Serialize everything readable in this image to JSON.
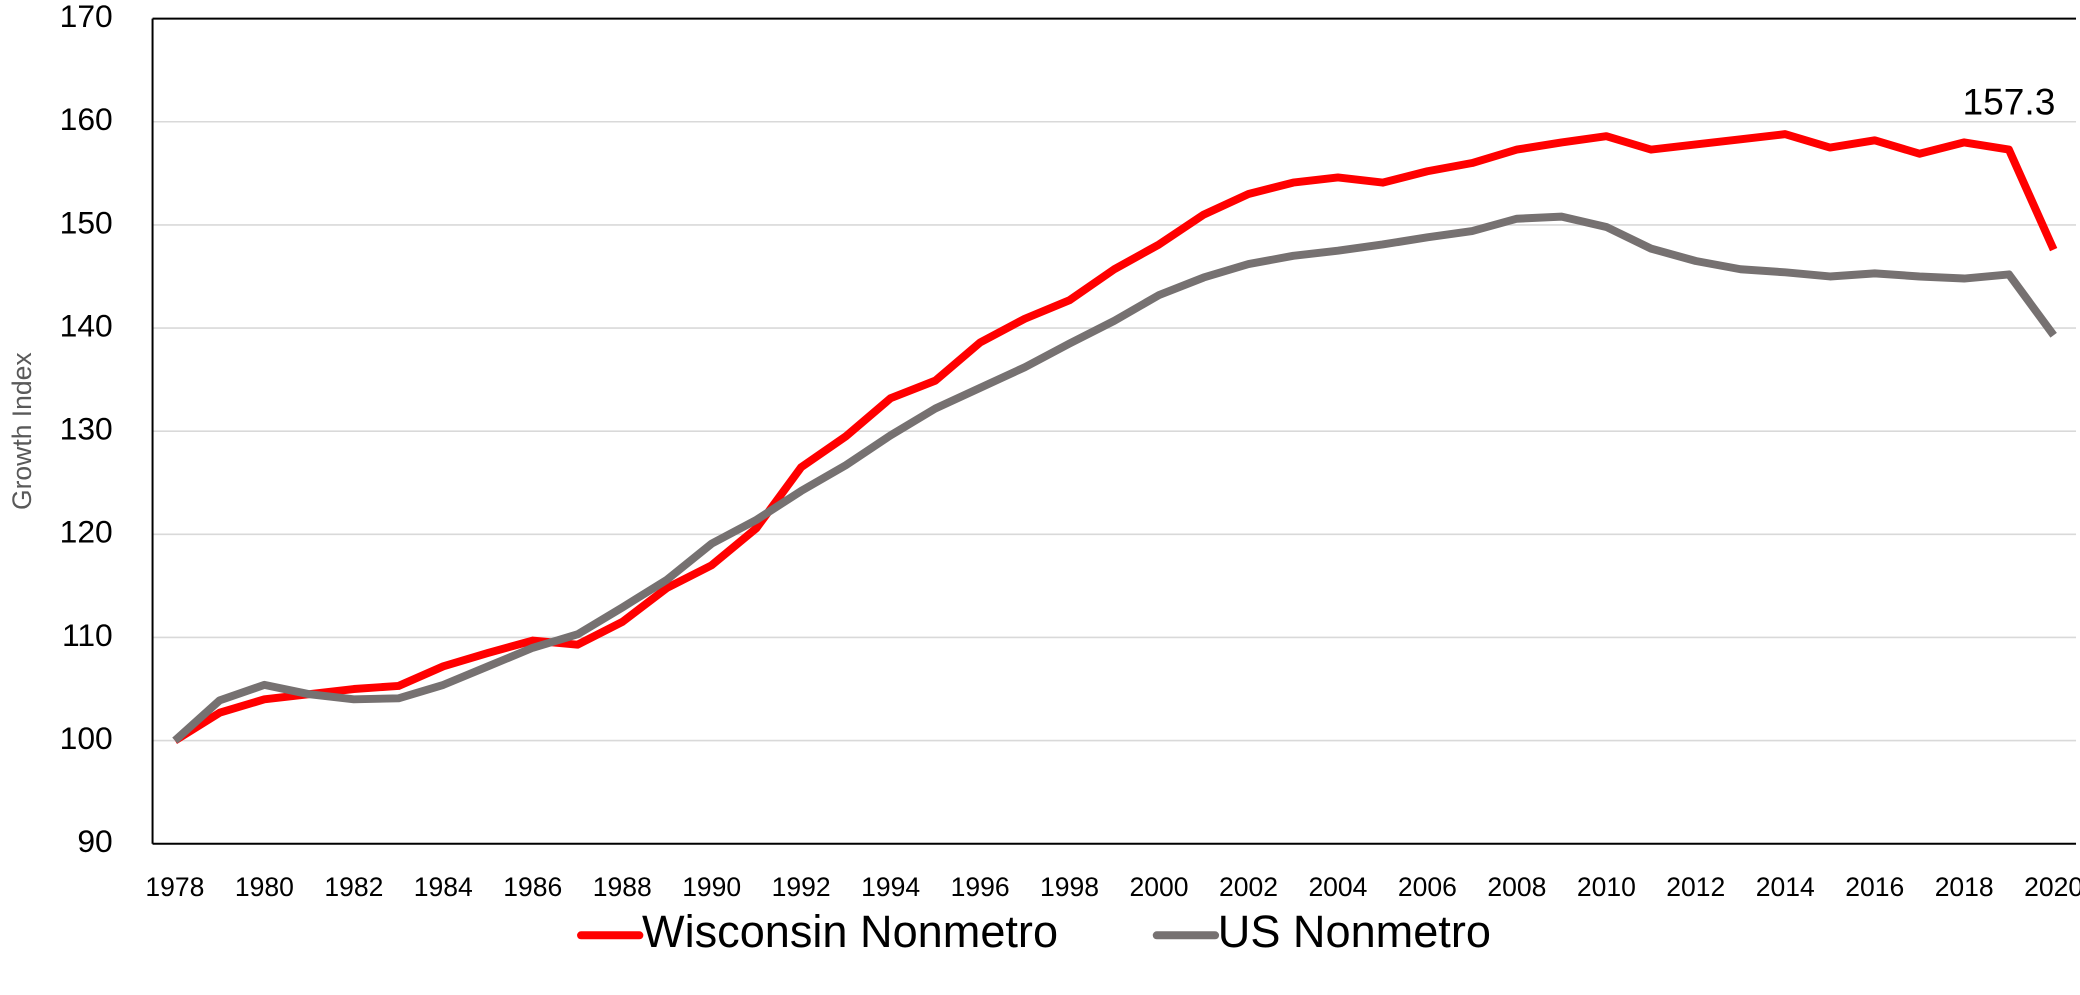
{
  "chart_data": {
    "type": "line",
    "y_label": "Growth Index",
    "annotation": "157.3",
    "categories": [
      "1978",
      null,
      "1980",
      null,
      "1982",
      null,
      "1984",
      null,
      "1986",
      null,
      "1988",
      null,
      "1990",
      null,
      "1992",
      null,
      "1994",
      null,
      "1996",
      null,
      "1998",
      null,
      "2000",
      null,
      "2002",
      null,
      "2004",
      null,
      "2006",
      null,
      "2008",
      null,
      "2010",
      null,
      "2012",
      null,
      "2014",
      null,
      "2016",
      null,
      "2018",
      null,
      "2020"
    ],
    "series": [
      {
        "name": "Wisconsin Nonmetro",
        "color": "#ff0000",
        "values": [
          100,
          102.7,
          104.0,
          104.5,
          105.0,
          105.3,
          107.2,
          108.5,
          109.7,
          109.3,
          111.5,
          114.8,
          117.0,
          120.6,
          126.5,
          129.5,
          133.2,
          134.9,
          138.6,
          140.9,
          142.7,
          145.7,
          148.1,
          151.0,
          153.0,
          154.1,
          154.6,
          154.1,
          155.2,
          156.0,
          157.3,
          158.0,
          158.6,
          157.3,
          157.8,
          158.3,
          158.8,
          157.5,
          158.2,
          156.9,
          158.0,
          157.3,
          147.6
        ]
      },
      {
        "name": "US Nonmetro",
        "color": "#767171",
        "values": [
          100,
          103.9,
          105.4,
          104.5,
          104.0,
          104.1,
          105.4,
          107.2,
          109.0,
          110.3,
          112.9,
          115.6,
          119.1,
          121.4,
          124.2,
          126.7,
          129.6,
          132.2,
          134.2,
          136.2,
          138.5,
          140.7,
          143.2,
          144.9,
          146.2,
          147.0,
          147.5,
          148.1,
          148.8,
          149.4,
          150.6,
          150.8,
          149.8,
          147.7,
          146.5,
          145.7,
          145.4,
          145.0,
          145.3,
          145.0,
          144.8,
          145.2,
          139.3
        ]
      }
    ],
    "ylim": [
      90,
      170
    ],
    "yticks": [
      90,
      100,
      110,
      120,
      130,
      140,
      150,
      160,
      170
    ],
    "grid": true,
    "legend": "bottom"
  }
}
